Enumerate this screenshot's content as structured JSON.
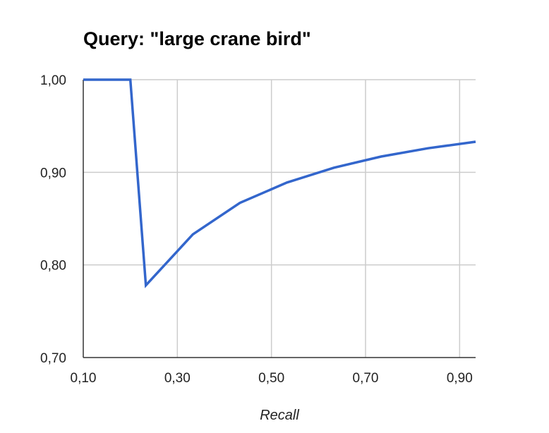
{
  "chart_data": {
    "type": "line",
    "title": "Query: \"large crane bird\"",
    "xlabel": "Recall",
    "ylabel": "",
    "xlim": [
      0.1,
      0.934
    ],
    "ylim": [
      0.7,
      1.0
    ],
    "x_ticks": [
      "0,10",
      "0,30",
      "0,50",
      "0,70",
      "0,90"
    ],
    "x_tick_values": [
      0.1,
      0.3,
      0.5,
      0.7,
      0.9
    ],
    "y_ticks": [
      "1,00",
      "0,90",
      "0,80",
      "0,70"
    ],
    "y_tick_values": [
      1.0,
      0.9,
      0.8,
      0.7
    ],
    "grid": true,
    "legend": "none",
    "series": [
      {
        "color": "#3366cc",
        "x": [
          0.1,
          0.2,
          0.233,
          0.333,
          0.433,
          0.533,
          0.633,
          0.733,
          0.833,
          0.934
        ],
        "y": [
          1.0,
          1.0,
          0.778,
          0.833,
          0.867,
          0.889,
          0.905,
          0.917,
          0.926,
          0.933
        ]
      }
    ]
  }
}
